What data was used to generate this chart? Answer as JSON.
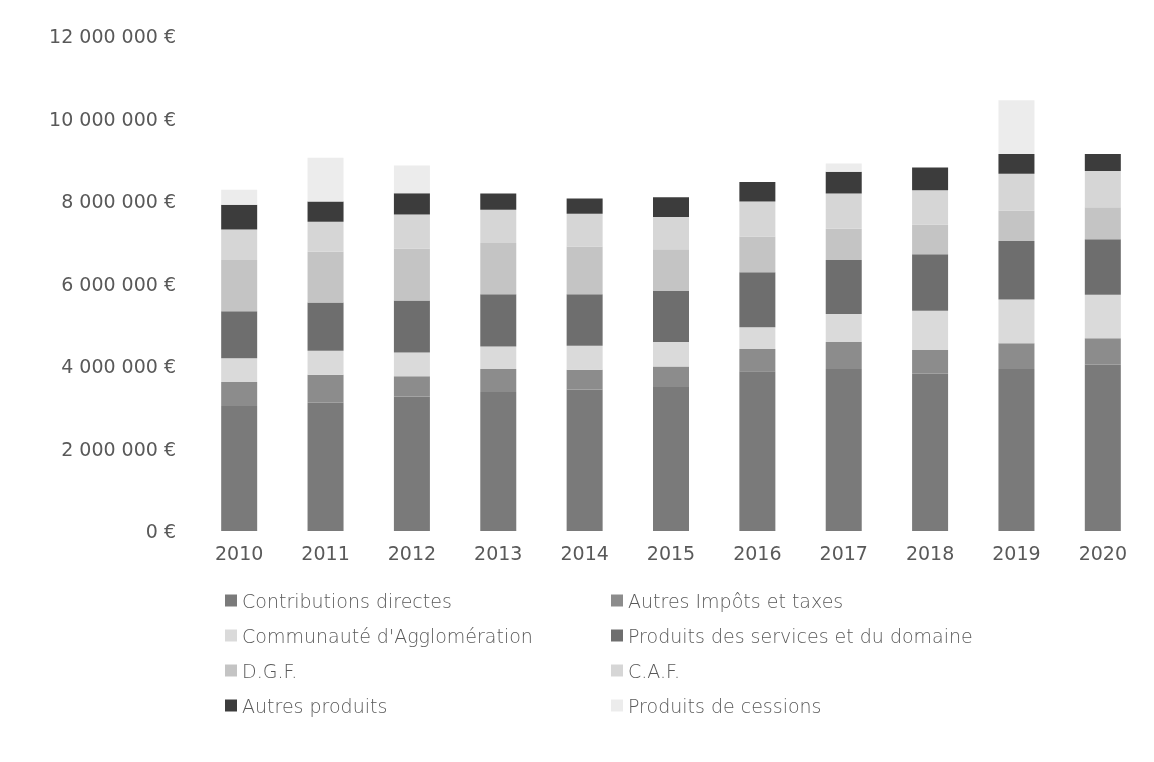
{
  "chart_data": {
    "type": "bar",
    "stacked": true,
    "categories": [
      "2010",
      "2011",
      "2012",
      "2013",
      "2014",
      "2015",
      "2016",
      "2017",
      "2018",
      "2019",
      "2020"
    ],
    "series": [
      {
        "name": "Contributions directes",
        "color": "#7a7a7a",
        "values": [
          3030000,
          3110000,
          3260000,
          3370000,
          3430000,
          3490000,
          3870000,
          3930000,
          3810000,
          3930000,
          4030000
        ]
      },
      {
        "name": "Autres Impôts et taxes",
        "color": "#8c8c8c",
        "values": [
          580000,
          680000,
          490000,
          560000,
          480000,
          500000,
          540000,
          650000,
          580000,
          620000,
          640000
        ]
      },
      {
        "name": "Communauté d'Agglomération",
        "color": "#dadada",
        "values": [
          580000,
          580000,
          580000,
          540000,
          580000,
          590000,
          530000,
          680000,
          950000,
          1060000,
          1060000
        ]
      },
      {
        "name": "Produits des services et du domaine",
        "color": "#6e6e6e",
        "values": [
          1140000,
          1170000,
          1260000,
          1270000,
          1250000,
          1240000,
          1330000,
          1310000,
          1370000,
          1420000,
          1340000
        ]
      },
      {
        "name": "D.G.F.",
        "color": "#c4c4c4",
        "values": [
          1240000,
          1230000,
          1260000,
          1240000,
          1160000,
          1010000,
          870000,
          760000,
          720000,
          740000,
          780000
        ]
      },
      {
        "name": "C.A.F.",
        "color": "#d6d6d6",
        "values": [
          740000,
          730000,
          820000,
          810000,
          790000,
          780000,
          850000,
          850000,
          830000,
          890000,
          880000
        ]
      },
      {
        "name": "Autres produits",
        "color": "#3c3c3c",
        "values": [
          600000,
          490000,
          520000,
          390000,
          370000,
          480000,
          470000,
          530000,
          550000,
          480000,
          410000
        ]
      },
      {
        "name": "Produits de cessions",
        "color": "#ececec",
        "values": [
          360000,
          1060000,
          670000,
          0,
          0,
          0,
          0,
          200000,
          0,
          1300000,
          0
        ]
      }
    ],
    "ylim": [
      0,
      12000000
    ],
    "yticks": [
      {
        "value": 0,
        "label": "0 €"
      },
      {
        "value": 2000000,
        "label": "2 000 000 €"
      },
      {
        "value": 4000000,
        "label": "4 000 000 €"
      },
      {
        "value": 6000000,
        "label": "6 000 000 €"
      },
      {
        "value": 8000000,
        "label": "8 000 000 €"
      },
      {
        "value": 10000000,
        "label": "10 000 000 €"
      },
      {
        "value": 12000000,
        "label": "12 000 000 €"
      }
    ],
    "grid": false,
    "legend": "bottom"
  }
}
